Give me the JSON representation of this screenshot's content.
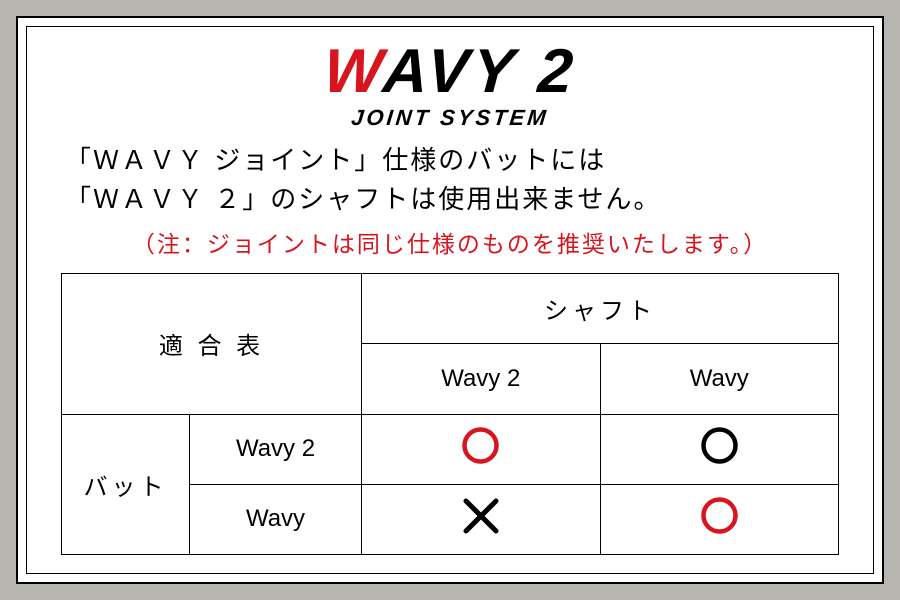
{
  "colors": {
    "red": "#d8151e",
    "black": "#000000",
    "background": "#b6b5b0",
    "paper": "#ffffff"
  },
  "logo": {
    "w": "W",
    "rest": "AVY 2",
    "fontsize": 62,
    "italic_skew_deg": -4
  },
  "subtitle": "JOINT SYSTEM",
  "desc": {
    "line1": "「ＷＡＶＹ ジョイント」仕様のバットには",
    "line2": "「ＷＡＶＹ ２」のシャフトは使用出来ません。"
  },
  "note": "（注：ジョイントは同じ仕様のものを推奨いたします。）",
  "table": {
    "corner_label": "適 合 表",
    "col_group_label": "シャフト",
    "row_group_label": "バット",
    "col_headers": [
      "Wavy 2",
      "Wavy"
    ],
    "row_headers": [
      "Wavy 2",
      "Wavy"
    ],
    "cells": [
      [
        {
          "symbol": "circle",
          "color": "#d8151e"
        },
        {
          "symbol": "circle",
          "color": "#000000"
        }
      ],
      [
        {
          "symbol": "cross",
          "color": "#000000"
        },
        {
          "symbol": "circle",
          "color": "#d8151e"
        }
      ]
    ],
    "circle": {
      "outer_r": 16,
      "stroke_width": 4.5
    },
    "cross": {
      "size": 30,
      "stroke_width": 5
    },
    "font_size": 24
  }
}
